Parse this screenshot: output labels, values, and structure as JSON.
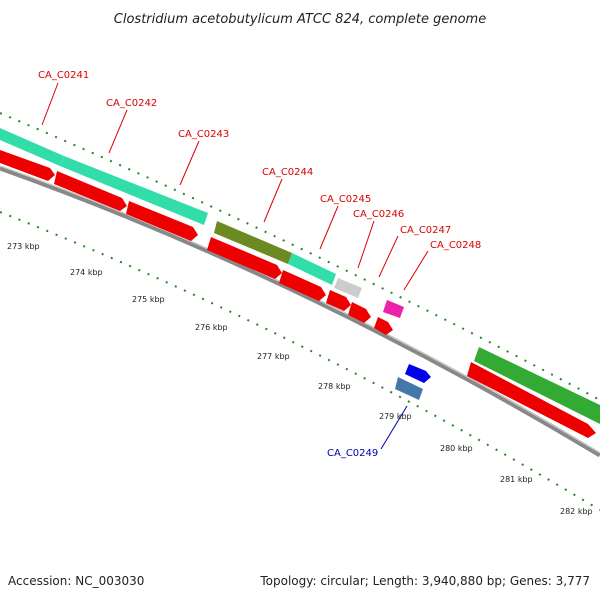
{
  "title": "Clostridium acetobutylicum ATCC 824, complete genome",
  "footer": {
    "accession": "Accession: NC_003030",
    "topology": "Topology: circular; Length: 3,940,880 bp; Genes: 3,777"
  },
  "ticks": [
    "273 kbp",
    "274 kbp",
    "275 kbp",
    "276 kbp",
    "277 kbp",
    "278 kbp",
    "279 kbp",
    "280 kbp",
    "281 kbp",
    "282 kbp"
  ],
  "genes": [
    {
      "label": "CA_C0241",
      "color": "#dd0000"
    },
    {
      "label": "CA_C0242",
      "color": "#dd0000"
    },
    {
      "label": "CA_C0243",
      "color": "#dd0000"
    },
    {
      "label": "CA_C0244",
      "color": "#dd0000"
    },
    {
      "label": "CA_C0245",
      "color": "#dd0000"
    },
    {
      "label": "CA_C0246",
      "color": "#dd0000"
    },
    {
      "label": "CA_C0247",
      "color": "#dd0000"
    },
    {
      "label": "CA_C0248",
      "color": "#dd0000"
    },
    {
      "label": "CA_C0249",
      "color": "#0000aa"
    }
  ],
  "colors": {
    "backbone": "#888888",
    "cds": "#ee0000",
    "cog_teal": "#33ddaa",
    "cog_olive": "#6b8a22",
    "cog_grey": "#cccccc",
    "cog_pink": "#ee22aa",
    "cog_green": "#33aa33",
    "cds_blue": "#0000ee",
    "cds_steel": "#4477aa",
    "tick": "#228822"
  }
}
